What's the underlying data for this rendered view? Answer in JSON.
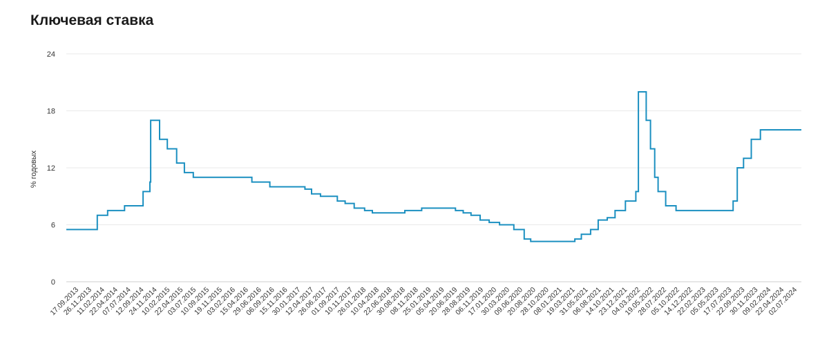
{
  "chart_data": {
    "type": "line",
    "title": "Ключевая ставка",
    "ylabel": "% годовых",
    "xlabel": "",
    "ylim": [
      0,
      24
    ],
    "yticks": [
      0,
      6,
      12,
      18,
      24
    ],
    "grid": true,
    "line_color": "#1a8fc0",
    "x_ticks": [
      "17.09.2013",
      "26.11.2013",
      "11.02.2014",
      "22.04.2014",
      "07.07.2014",
      "12.09.2014",
      "24.11.2014",
      "10.02.2015",
      "22.04.2015",
      "03.07.2015",
      "10.09.2015",
      "19.11.2015",
      "03.02.2016",
      "15.04.2016",
      "29.06.2016",
      "06.09.2016",
      "15.11.2016",
      "30.01.2017",
      "12.04.2017",
      "26.06.2017",
      "01.09.2017",
      "10.11.2017",
      "26.01.2018",
      "10.04.2018",
      "22.06.2018",
      "30.08.2018",
      "08.11.2018",
      "25.01.2019",
      "05.04.2019",
      "20.06.2019",
      "28.08.2019",
      "06.11.2019",
      "17.01.2020",
      "30.03.2020",
      "09.06.2020",
      "20.08.2020",
      "28.10.2020",
      "08.01.2021",
      "19.03.2021",
      "31.05.2021",
      "06.08.2021",
      "14.10.2021",
      "23.12.2021",
      "04.03.2022",
      "19.05.2022",
      "28.07.2022",
      "05.10.2022",
      "14.12.2022",
      "22.02.2023",
      "05.05.2023",
      "17.07.2023",
      "22.09.2023",
      "30.11.2023",
      "09.02.2024",
      "22.04.2024",
      "02.07.2024"
    ],
    "series": [
      {
        "step": "post",
        "points": [
          [
            "2013-09-17",
            5.5
          ],
          [
            "2014-03-03",
            7.0
          ],
          [
            "2014-04-28",
            7.5
          ],
          [
            "2014-07-28",
            8.0
          ],
          [
            "2014-11-05",
            9.5
          ],
          [
            "2014-12-12",
            10.5
          ],
          [
            "2014-12-16",
            17.0
          ],
          [
            "2015-02-02",
            15.0
          ],
          [
            "2015-03-16",
            14.0
          ],
          [
            "2015-05-05",
            12.5
          ],
          [
            "2015-06-16",
            11.5
          ],
          [
            "2015-08-03",
            11.0
          ],
          [
            "2016-06-14",
            10.5
          ],
          [
            "2016-09-19",
            10.0
          ],
          [
            "2017-03-27",
            9.75
          ],
          [
            "2017-05-02",
            9.25
          ],
          [
            "2017-06-19",
            9.0
          ],
          [
            "2017-09-18",
            8.5
          ],
          [
            "2017-10-30",
            8.25
          ],
          [
            "2017-12-18",
            7.75
          ],
          [
            "2018-02-12",
            7.5
          ],
          [
            "2018-03-26",
            7.25
          ],
          [
            "2018-09-17",
            7.5
          ],
          [
            "2018-12-17",
            7.75
          ],
          [
            "2019-06-17",
            7.5
          ],
          [
            "2019-07-29",
            7.25
          ],
          [
            "2019-09-09",
            7.0
          ],
          [
            "2019-10-28",
            6.5
          ],
          [
            "2019-12-16",
            6.25
          ],
          [
            "2020-02-10",
            6.0
          ],
          [
            "2020-04-27",
            5.5
          ],
          [
            "2020-06-22",
            4.5
          ],
          [
            "2020-07-27",
            4.25
          ],
          [
            "2021-03-22",
            4.5
          ],
          [
            "2021-04-26",
            5.0
          ],
          [
            "2021-06-15",
            5.5
          ],
          [
            "2021-07-26",
            6.5
          ],
          [
            "2021-09-13",
            6.75
          ],
          [
            "2021-10-25",
            7.5
          ],
          [
            "2021-12-20",
            8.5
          ],
          [
            "2022-02-14",
            9.5
          ],
          [
            "2022-02-28",
            20.0
          ],
          [
            "2022-04-11",
            17.0
          ],
          [
            "2022-05-04",
            14.0
          ],
          [
            "2022-05-27",
            11.0
          ],
          [
            "2022-06-14",
            9.5
          ],
          [
            "2022-07-25",
            8.0
          ],
          [
            "2022-09-19",
            7.5
          ],
          [
            "2023-07-24",
            8.5
          ],
          [
            "2023-08-15",
            12.0
          ],
          [
            "2023-09-18",
            13.0
          ],
          [
            "2023-10-30",
            15.0
          ],
          [
            "2023-12-18",
            16.0
          ],
          [
            "2024-07-26",
            16.0
          ]
        ]
      }
    ]
  }
}
